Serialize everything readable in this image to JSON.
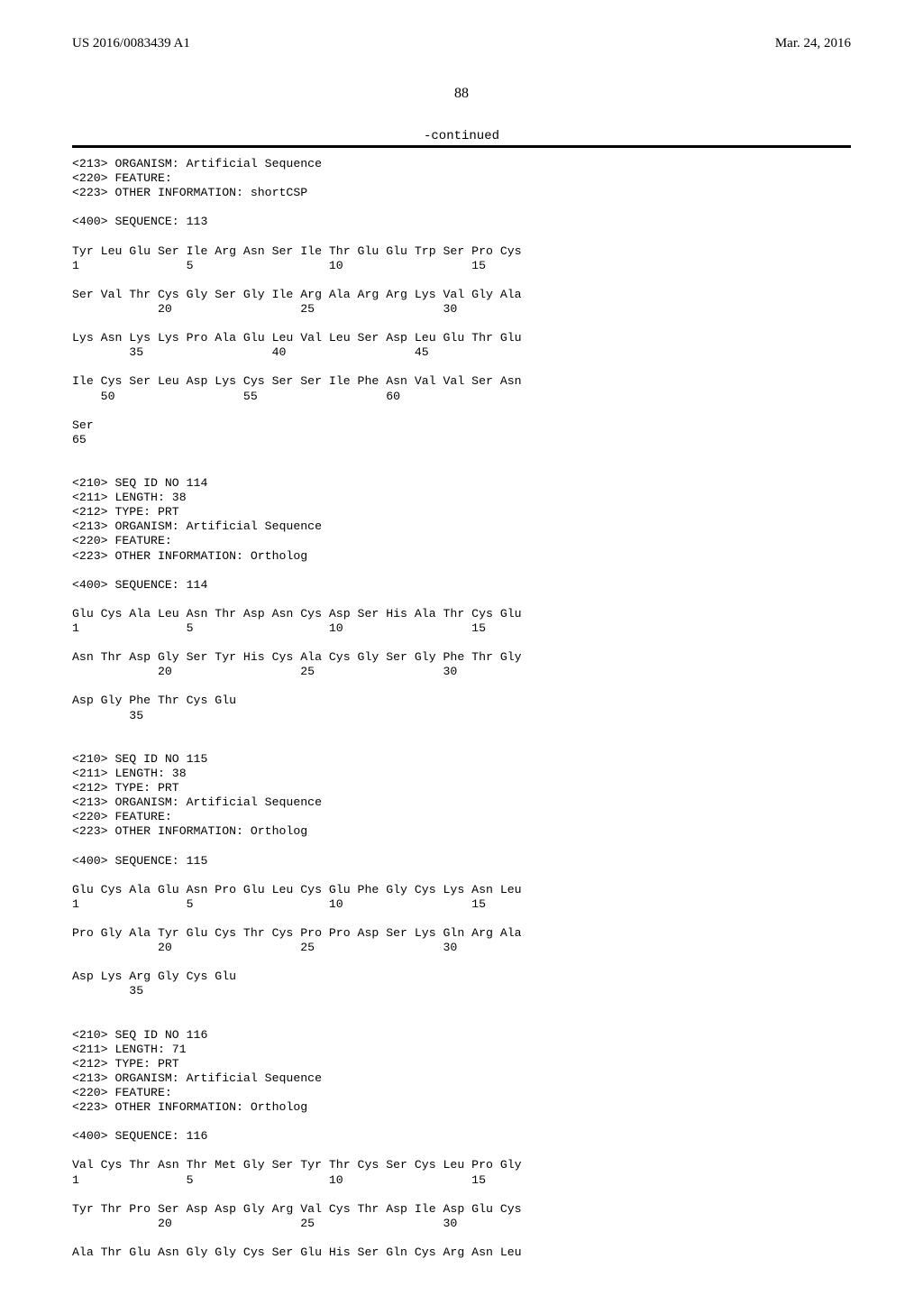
{
  "header": {
    "pub_number": "US 2016/0083439 A1",
    "pub_date": "Mar. 24, 2016"
  },
  "page_number": "88",
  "continued_label": "-continued",
  "seq_text": "<213> ORGANISM: Artificial Sequence\n<220> FEATURE:\n<223> OTHER INFORMATION: shortCSP\n\n<400> SEQUENCE: 113\n\nTyr Leu Glu Ser Ile Arg Asn Ser Ile Thr Glu Glu Trp Ser Pro Cys\n1               5                   10                  15\n\nSer Val Thr Cys Gly Ser Gly Ile Arg Ala Arg Arg Lys Val Gly Ala\n            20                  25                  30\n\nLys Asn Lys Lys Pro Ala Glu Leu Val Leu Ser Asp Leu Glu Thr Glu\n        35                  40                  45\n\nIle Cys Ser Leu Asp Lys Cys Ser Ser Ile Phe Asn Val Val Ser Asn\n    50                  55                  60\n\nSer\n65\n\n\n<210> SEQ ID NO 114\n<211> LENGTH: 38\n<212> TYPE: PRT\n<213> ORGANISM: Artificial Sequence\n<220> FEATURE:\n<223> OTHER INFORMATION: Ortholog\n\n<400> SEQUENCE: 114\n\nGlu Cys Ala Leu Asn Thr Asp Asn Cys Asp Ser His Ala Thr Cys Glu\n1               5                   10                  15\n\nAsn Thr Asp Gly Ser Tyr His Cys Ala Cys Gly Ser Gly Phe Thr Gly\n            20                  25                  30\n\nAsp Gly Phe Thr Cys Glu\n        35\n\n\n<210> SEQ ID NO 115\n<211> LENGTH: 38\n<212> TYPE: PRT\n<213> ORGANISM: Artificial Sequence\n<220> FEATURE:\n<223> OTHER INFORMATION: Ortholog\n\n<400> SEQUENCE: 115\n\nGlu Cys Ala Glu Asn Pro Glu Leu Cys Glu Phe Gly Cys Lys Asn Leu\n1               5                   10                  15\n\nPro Gly Ala Tyr Glu Cys Thr Cys Pro Pro Asp Ser Lys Gln Arg Ala\n            20                  25                  30\n\nAsp Lys Arg Gly Cys Glu\n        35\n\n\n<210> SEQ ID NO 116\n<211> LENGTH: 71\n<212> TYPE: PRT\n<213> ORGANISM: Artificial Sequence\n<220> FEATURE:\n<223> OTHER INFORMATION: Ortholog\n\n<400> SEQUENCE: 116\n\nVal Cys Thr Asn Thr Met Gly Ser Tyr Thr Cys Ser Cys Leu Pro Gly\n1               5                   10                  15\n\nTyr Thr Pro Ser Asp Asp Gly Arg Val Cys Thr Asp Ile Asp Glu Cys\n            20                  25                  30\n\nAla Thr Glu Asn Gly Gly Cys Ser Glu His Ser Gln Cys Arg Asn Leu"
}
